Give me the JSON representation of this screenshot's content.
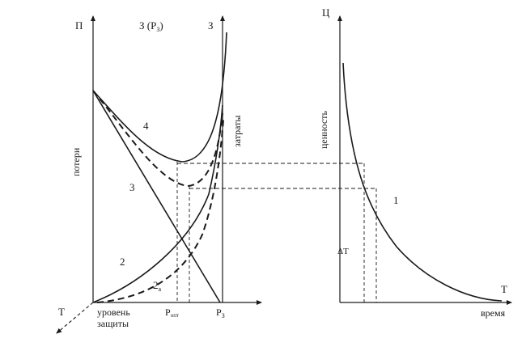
{
  "left_panel": {
    "axis_p": "П",
    "axis_z_rz": "З (Р",
    "axis_z_rz_sub": "З",
    "axis_z_rz_close": ")",
    "axis_z": "З",
    "label_losses": "потери",
    "label_costs": "затраты",
    "curve_4": "4",
    "curve_3": "3",
    "curve_2": "2",
    "curve_2a": "2",
    "curve_2a_sub": "а",
    "axis_t": "Т",
    "x_label_level_line1": "уровень",
    "x_label_level_line2": "защиты",
    "x_label_popt": "Р",
    "x_label_popt_sub": "опт",
    "x_label_rz": "Р",
    "x_label_rz_sub": "З"
  },
  "right_panel": {
    "axis_ts": "Ц",
    "label_value": "ценность",
    "curve_1": "1",
    "label_delta_t": "ΔТ",
    "axis_t": "Т",
    "label_time": "время"
  },
  "colors": {
    "ink": "#1a1a1a",
    "background": "#ffffff"
  }
}
